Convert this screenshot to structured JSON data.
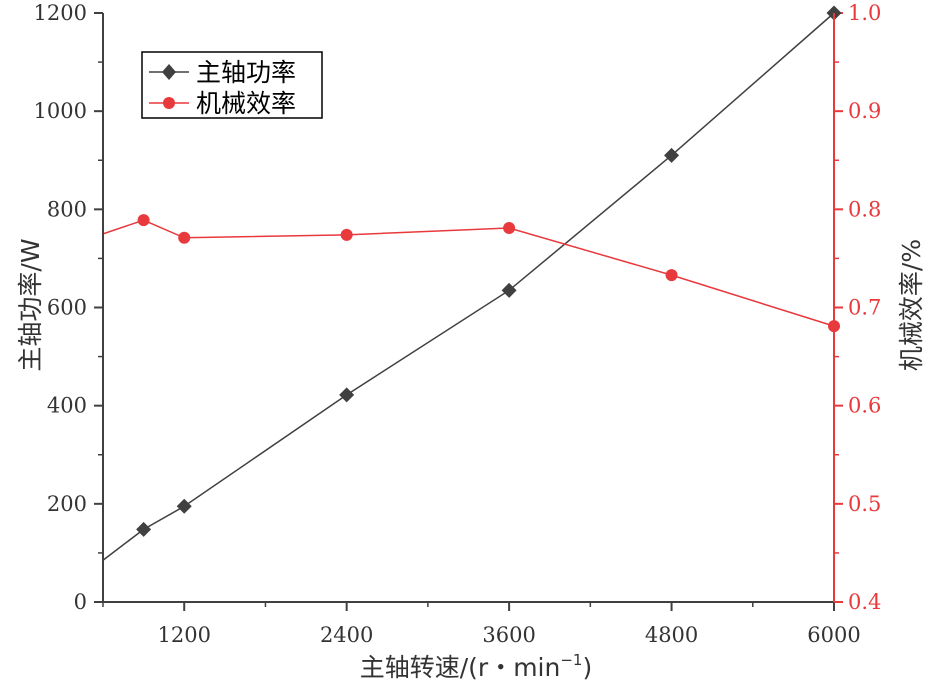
{
  "chart_data": {
    "type": "line",
    "xlabel_main": "主轴转速/(r・min",
    "xlabel_sup": "−1",
    "xlabel_close": ")",
    "ylabel_left": "主轴功率/W",
    "ylabel_right": "机械效率/%",
    "xlim": [
      600,
      6000
    ],
    "ylim_left": [
      0,
      1200
    ],
    "ylim_right": [
      0.4,
      1.0
    ],
    "x_ticks": [
      1200,
      2400,
      3600,
      4800,
      6000
    ],
    "x_tick_labels": [
      "1200",
      "2400",
      "3600",
      "4800",
      "6000"
    ],
    "y_left_ticks": [
      0,
      200,
      400,
      600,
      800,
      1000,
      1200
    ],
    "y_left_tick_labels": [
      "0",
      "200",
      "400",
      "600",
      "800",
      "1000",
      "1200"
    ],
    "y_right_ticks": [
      0.4,
      0.5,
      0.6,
      0.7,
      0.8,
      0.9,
      1.0
    ],
    "y_right_tick_labels": [
      "0.4",
      "0.5",
      "0.6",
      "0.7",
      "0.8",
      "0.9",
      "1.0"
    ],
    "legend_position": "top-left",
    "series": [
      {
        "name": "主轴功率",
        "axis": "left",
        "color": "#404040",
        "marker": "diamond",
        "x": [
          900,
          1200,
          2400,
          3600,
          4800,
          6000
        ],
        "values": [
          148,
          195,
          422,
          635,
          910,
          1200
        ],
        "line_x": [
          600,
          900,
          1200,
          2400,
          3600,
          4800,
          6000
        ],
        "line_values": [
          85,
          148,
          195,
          422,
          635,
          910,
          1200
        ]
      },
      {
        "name": "机械效率",
        "axis": "right",
        "color": "#e8393d",
        "marker": "circle",
        "x": [
          900,
          1200,
          2400,
          3600,
          4800,
          6000
        ],
        "values": [
          0.789,
          0.771,
          0.774,
          0.781,
          0.733,
          0.681
        ],
        "line_x": [
          600,
          900,
          1200,
          2400,
          3600,
          4800,
          6000
        ],
        "line_values": [
          0.775,
          0.789,
          0.771,
          0.774,
          0.781,
          0.733,
          0.681
        ]
      }
    ]
  }
}
